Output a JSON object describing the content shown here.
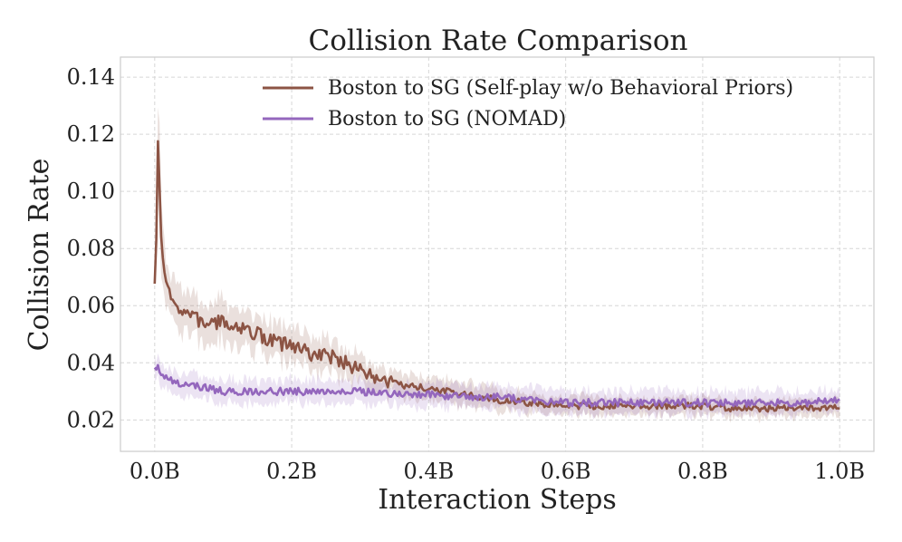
{
  "chart_data": {
    "type": "line",
    "title": "Collision Rate Comparison",
    "xlabel": "Interaction Steps",
    "ylabel": "Collision Rate",
    "xlim": [
      -0.05,
      1.05
    ],
    "ylim": [
      0.009,
      0.147
    ],
    "xticks": [
      0.0,
      0.2,
      0.4,
      0.6,
      0.8,
      1.0
    ],
    "xtick_labels": [
      "0.0B",
      "0.2B",
      "0.4B",
      "0.6B",
      "0.8B",
      "1.0B"
    ],
    "yticks": [
      0.02,
      0.04,
      0.06,
      0.08,
      0.1,
      0.12,
      0.14
    ],
    "ytick_labels": [
      "0.02",
      "0.04",
      "0.06",
      "0.08",
      "0.10",
      "0.12",
      "0.14"
    ],
    "grid": true,
    "legend_position": "top-right",
    "series": [
      {
        "name": "Boston to SG (Self-play w/o Behavioral Priors)",
        "color": "#8c5444",
        "x": [
          0.0,
          0.002,
          0.005,
          0.008,
          0.012,
          0.02,
          0.03,
          0.05,
          0.07,
          0.1,
          0.12,
          0.15,
          0.18,
          0.2,
          0.23,
          0.26,
          0.28,
          0.3,
          0.33,
          0.36,
          0.4,
          0.45,
          0.5,
          0.55,
          0.6,
          0.65,
          0.7,
          0.75,
          0.8,
          0.85,
          0.9,
          0.95,
          1.0
        ],
        "y": [
          0.069,
          0.075,
          0.122,
          0.09,
          0.075,
          0.064,
          0.06,
          0.057,
          0.054,
          0.054,
          0.053,
          0.05,
          0.047,
          0.046,
          0.043,
          0.042,
          0.04,
          0.037,
          0.034,
          0.032,
          0.031,
          0.029,
          0.027,
          0.026,
          0.025,
          0.025,
          0.025,
          0.025,
          0.025,
          0.024,
          0.024,
          0.024,
          0.025
        ],
        "band": [
          0.0,
          0.0,
          0.02,
          0.015,
          0.01,
          0.008,
          0.008,
          0.007,
          0.007,
          0.007,
          0.007,
          0.006,
          0.006,
          0.006,
          0.006,
          0.006,
          0.005,
          0.005,
          0.005,
          0.004,
          0.004,
          0.004,
          0.004,
          0.003,
          0.003,
          0.003,
          0.003,
          0.003,
          0.003,
          0.003,
          0.003,
          0.003,
          0.003
        ]
      },
      {
        "name": "Boston to SG (NOMAD)",
        "color": "#9467bd",
        "x": [
          0.0,
          0.005,
          0.01,
          0.02,
          0.03,
          0.05,
          0.08,
          0.1,
          0.15,
          0.2,
          0.25,
          0.3,
          0.35,
          0.4,
          0.45,
          0.5,
          0.55,
          0.6,
          0.65,
          0.7,
          0.75,
          0.8,
          0.85,
          0.9,
          0.95,
          1.0
        ],
        "y": [
          0.039,
          0.038,
          0.036,
          0.034,
          0.033,
          0.032,
          0.031,
          0.03,
          0.03,
          0.03,
          0.03,
          0.03,
          0.029,
          0.029,
          0.028,
          0.028,
          0.027,
          0.026,
          0.026,
          0.026,
          0.026,
          0.026,
          0.026,
          0.026,
          0.026,
          0.027
        ],
        "band": [
          0.004,
          0.004,
          0.004,
          0.004,
          0.004,
          0.004,
          0.004,
          0.004,
          0.004,
          0.004,
          0.004,
          0.004,
          0.004,
          0.004,
          0.004,
          0.004,
          0.004,
          0.004,
          0.004,
          0.004,
          0.004,
          0.004,
          0.004,
          0.004,
          0.004,
          0.004
        ]
      }
    ]
  }
}
